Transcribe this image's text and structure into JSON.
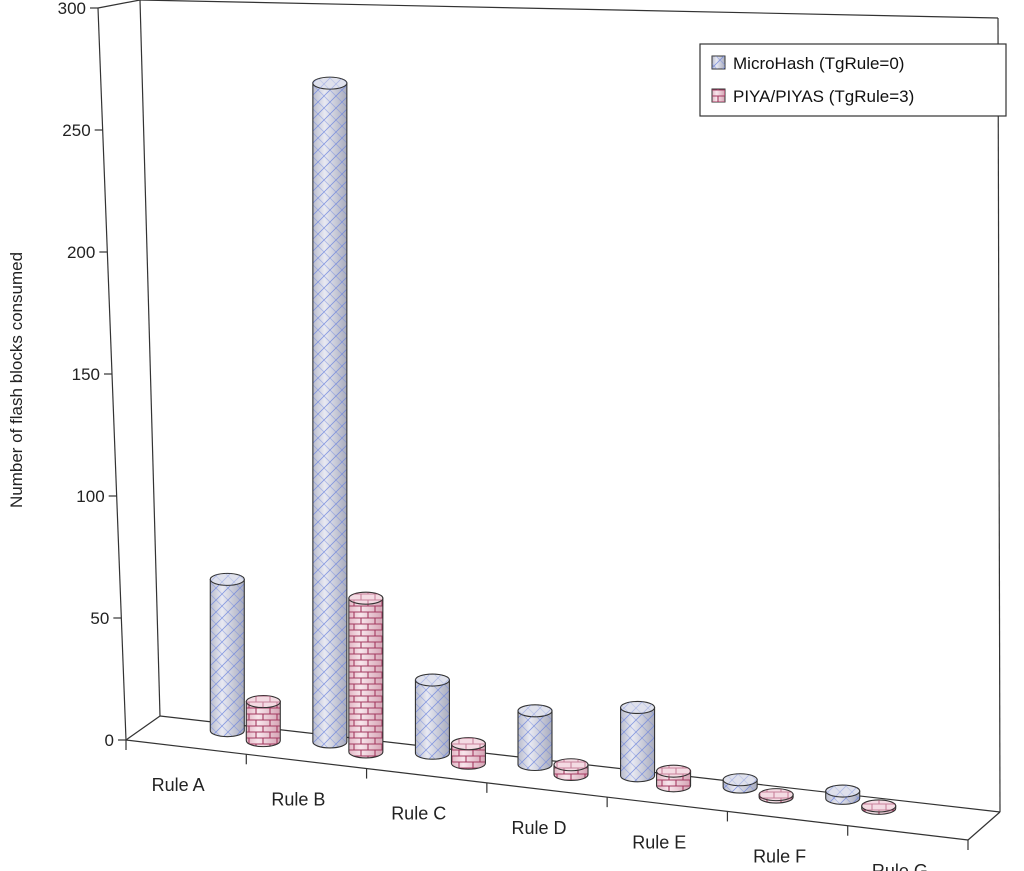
{
  "chart_data": {
    "type": "bar",
    "style": "3d-cylinder",
    "title": "",
    "xlabel": "",
    "ylabel": "Number of flash blocks consumed",
    "ylim": [
      0,
      300
    ],
    "yticks": [
      0,
      50,
      100,
      150,
      200,
      250,
      300
    ],
    "categories": [
      "Rule A",
      "Rule B",
      "Rule C",
      "Rule D",
      "Rule E",
      "Rule F",
      "Rule G"
    ],
    "series": [
      {
        "name": "MicroHash (TgRule=0)",
        "values": [
          62,
          270,
          30,
          22,
          28,
          3,
          3
        ],
        "pattern": "crosshatch",
        "color": "#c9ccdf",
        "line_color": "#5f77d6"
      },
      {
        "name": "PIYA/PIYAS (TgRule=3)",
        "values": [
          16,
          63,
          8,
          4,
          6,
          1,
          1
        ],
        "pattern": "brick",
        "color": "#f0d2dc",
        "line_color": "#a0395d"
      }
    ],
    "grid": false,
    "legend_position": "top-right"
  }
}
